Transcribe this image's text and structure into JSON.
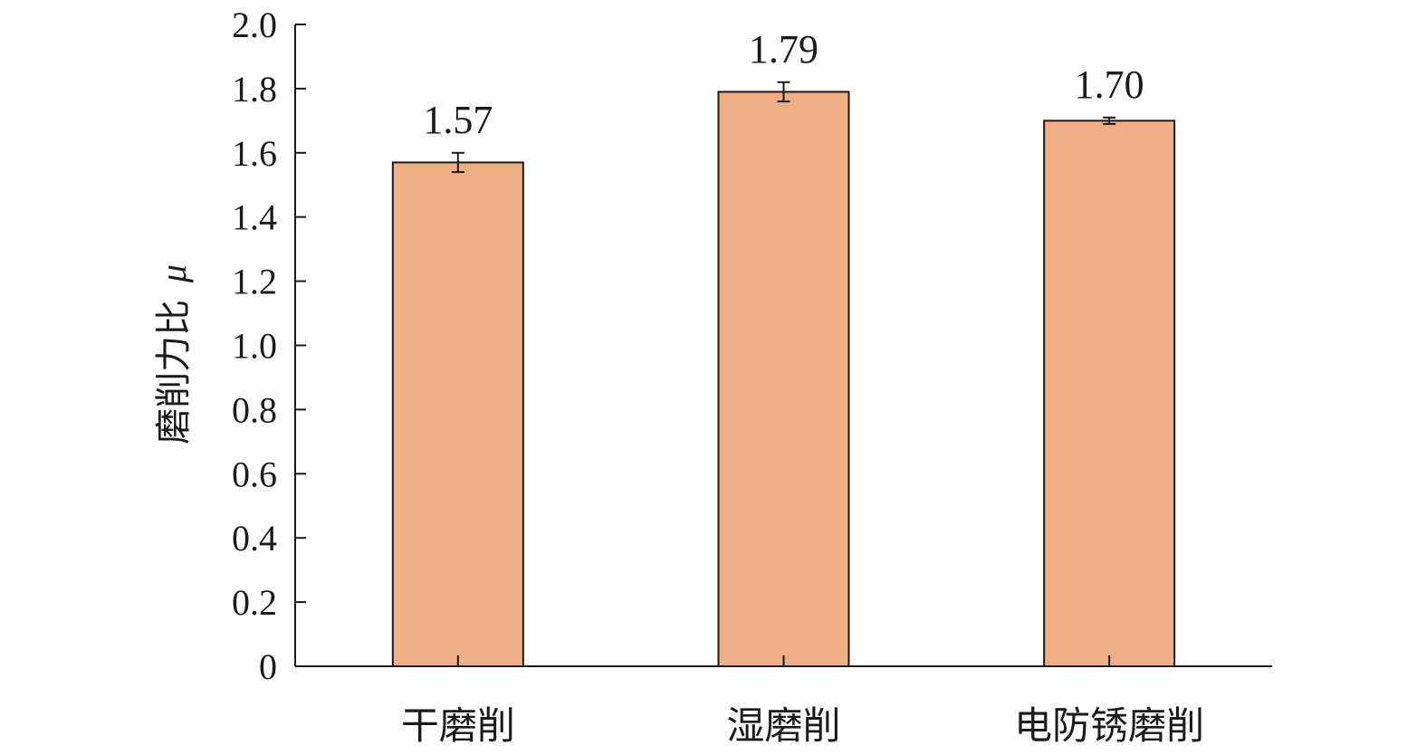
{
  "chart_data": {
    "type": "bar",
    "categories": [
      "干磨削",
      "湿磨削",
      "电防锈磨削"
    ],
    "values": [
      1.57,
      1.79,
      1.7
    ],
    "errors": [
      0.03,
      0.03,
      0.01
    ],
    "value_labels": [
      "1.57",
      "1.79",
      "1.70"
    ],
    "ylabel": "磨削力比",
    "ylabel_symbol": "μ",
    "ylim": [
      0,
      2.0
    ],
    "yticks": [
      0,
      0.2,
      0.4,
      0.6,
      0.8,
      1.0,
      1.2,
      1.4,
      1.6,
      1.8,
      2.0
    ],
    "ytick_labels": [
      "0",
      "0.2",
      "0.4",
      "0.6",
      "0.8",
      "1.0",
      "1.2",
      "1.4",
      "1.6",
      "1.8",
      "2.0"
    ],
    "bar_color": "#EEAF84",
    "bar_edge_color": "#1a1a1a",
    "grid": false,
    "legend": "none"
  }
}
